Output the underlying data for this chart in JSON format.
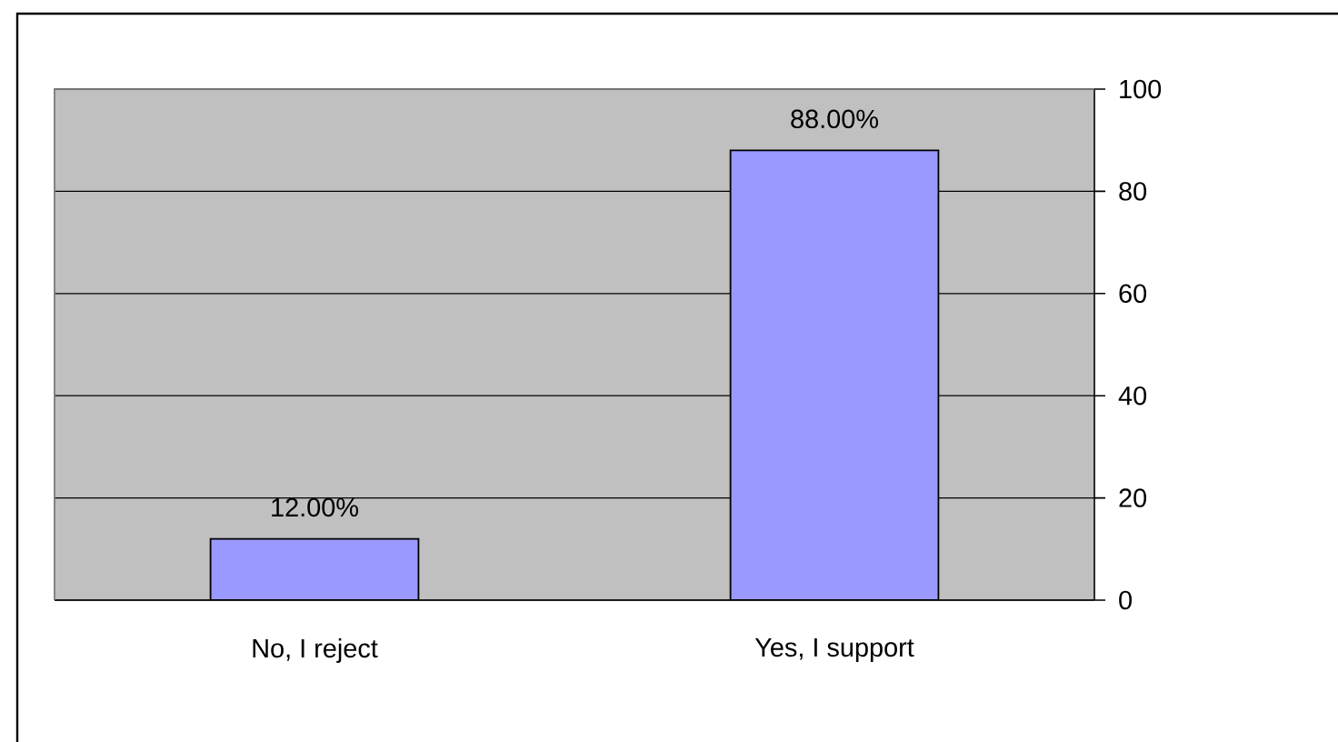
{
  "chart_data": {
    "type": "bar",
    "categories": [
      "No, I reject",
      "Yes, I support"
    ],
    "values": [
      12,
      88
    ],
    "color": "#9999ff",
    "value_labels": [
      "12.00%",
      "88.00%"
    ],
    "ylim": [
      0,
      100
    ],
    "yticks": [
      0,
      20,
      40,
      60,
      80,
      100
    ],
    "grid": "y"
  }
}
